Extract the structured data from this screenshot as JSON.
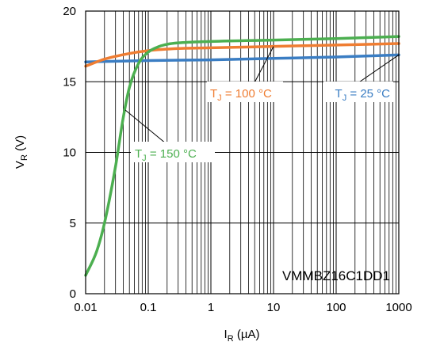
{
  "chart_data": {
    "type": "line",
    "x_scale": "log",
    "xlim": [
      0.01,
      1000
    ],
    "ylim": [
      0,
      20
    ],
    "x_ticks": [
      0.01,
      0.1,
      1,
      10,
      100,
      1000
    ],
    "x_tick_labels": [
      "0.01",
      "0.1",
      "1",
      "10",
      "100",
      "1000"
    ],
    "y_ticks": [
      0,
      5,
      10,
      15,
      20
    ],
    "y_tick_labels": [
      "0",
      "5",
      "10",
      "15",
      "20"
    ],
    "grid": true,
    "xlabel": {
      "main": "I",
      "sub": "R",
      "unit": " (µA)"
    },
    "ylabel": {
      "main": "V",
      "sub": "R",
      "unit": " (V)"
    },
    "part_number": "VMMBZ16C1DD1",
    "series": [
      {
        "color": "#3a7dc3",
        "label": {
          "pre": "T",
          "sub": "J",
          "post": " = 25 °C"
        },
        "x": [
          0.01,
          0.1,
          1,
          10,
          100,
          1000
        ],
        "y": [
          16.4,
          16.5,
          16.55,
          16.65,
          16.75,
          16.9
        ]
      },
      {
        "color": "#ef7d32",
        "label": {
          "pre": "T",
          "sub": "J",
          "post": " = 100 °C"
        },
        "x": [
          0.01,
          0.02,
          0.05,
          0.1,
          0.3,
          1,
          10,
          100,
          1000
        ],
        "y": [
          16.1,
          16.6,
          17.0,
          17.2,
          17.35,
          17.4,
          17.5,
          17.6,
          17.7
        ]
      },
      {
        "color": "#4caf50",
        "label": {
          "pre": "T",
          "sub": "J",
          "post": " = 150 °C"
        },
        "x": [
          0.01,
          0.015,
          0.02,
          0.03,
          0.04,
          0.05,
          0.07,
          0.1,
          0.15,
          0.2,
          0.3,
          1,
          10,
          100,
          1000
        ],
        "y": [
          1.3,
          3.0,
          5.0,
          9.0,
          12.5,
          14.6,
          16.3,
          17.1,
          17.5,
          17.65,
          17.75,
          17.85,
          17.95,
          18.05,
          18.2
        ]
      }
    ]
  }
}
